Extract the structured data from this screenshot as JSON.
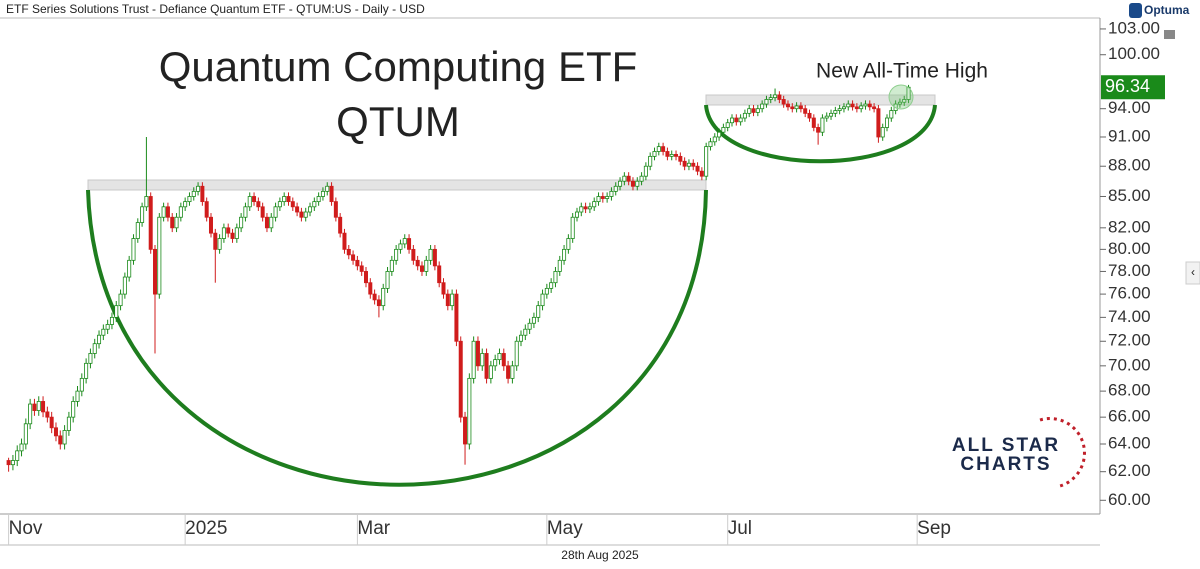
{
  "chart_data": {
    "type": "candlestick",
    "header": "ETF Series Solutions Trust - Defiance Quantum ETF - QTUM:US - Daily - USD",
    "source": "Optuma",
    "title": "Quantum Computing ETF",
    "subtitle": "QTUM",
    "annotation": "New All-Time High",
    "date_label": "28th Aug 2025",
    "logo": [
      "ALL STAR",
      "CHARTS"
    ],
    "log_scale": true,
    "up_color": "#1a8a1a",
    "down_color": "#d01c1c",
    "annotation_color": "#1e7d1e",
    "ylim": [
      59.2,
      104.3
    ],
    "yticks": [
      {
        "value": 103,
        "label": "103.00"
      },
      {
        "value": 100,
        "label": "100.00"
      },
      {
        "value": 94,
        "label": "94.00"
      },
      {
        "value": 91,
        "label": "91.00"
      },
      {
        "value": 88,
        "label": "88.00"
      },
      {
        "value": 85,
        "label": "85.00"
      },
      {
        "value": 82,
        "label": "82.00"
      },
      {
        "value": 80,
        "label": "80.00"
      },
      {
        "value": 78,
        "label": "78.00"
      },
      {
        "value": 76,
        "label": "76.00"
      },
      {
        "value": 74,
        "label": "74.00"
      },
      {
        "value": 72,
        "label": "72.00"
      },
      {
        "value": 70,
        "label": "70.00"
      },
      {
        "value": 68,
        "label": "68.00"
      },
      {
        "value": 66,
        "label": "66.00"
      },
      {
        "value": 64,
        "label": "64.00"
      },
      {
        "value": 62,
        "label": "62.00"
      },
      {
        "value": 60,
        "label": "60.00"
      }
    ],
    "xlim": [
      -2,
      253
    ],
    "xticks": [
      {
        "value": 0,
        "label": "Nov"
      },
      {
        "value": 41,
        "label": "2025"
      },
      {
        "value": 81,
        "label": "Mar"
      },
      {
        "value": 125,
        "label": "May"
      },
      {
        "value": 167,
        "label": "Jul"
      },
      {
        "value": 211,
        "label": "Sep"
      }
    ],
    "ohlc": [
      [
        62.8,
        63,
        62,
        62.5
      ],
      [
        62.5,
        63.2,
        62.1,
        62.8
      ],
      [
        62.8,
        63.9,
        62.4,
        63.5
      ],
      [
        63.5,
        64.4,
        63.1,
        64
      ],
      [
        64,
        65.9,
        63.6,
        65.5
      ],
      [
        65.5,
        67.4,
        65.1,
        67
      ],
      [
        67,
        67.4,
        66.1,
        66.5
      ],
      [
        66.5,
        67.6,
        66.1,
        67.2
      ],
      [
        67.2,
        67.6,
        66,
        66.4
      ],
      [
        66.4,
        66.8,
        65.6,
        66
      ],
      [
        66,
        66.4,
        64.8,
        65.2
      ],
      [
        65.2,
        65.6,
        64.2,
        64.6
      ],
      [
        64.6,
        65,
        63.6,
        64
      ],
      [
        64,
        65.4,
        63.6,
        65
      ],
      [
        65,
        66.4,
        64.6,
        66
      ],
      [
        66,
        67.6,
        65.6,
        67.2
      ],
      [
        67.2,
        68.4,
        66.8,
        68
      ],
      [
        68,
        69.4,
        67.6,
        69
      ],
      [
        69,
        70.6,
        68.6,
        70.2
      ],
      [
        70.2,
        71.4,
        69.8,
        71
      ],
      [
        71,
        72.2,
        70.6,
        71.8
      ],
      [
        71.8,
        72.9,
        71.4,
        72.5
      ],
      [
        72.5,
        73.4,
        72.1,
        73
      ],
      [
        73,
        73.8,
        72.6,
        73.4
      ],
      [
        73.4,
        74.4,
        73,
        74
      ],
      [
        74,
        75.4,
        73.6,
        75
      ],
      [
        75,
        76.4,
        74.6,
        76
      ],
      [
        76,
        77.9,
        75.6,
        77.5
      ],
      [
        77.5,
        79.4,
        77.1,
        79
      ],
      [
        79,
        81.4,
        78.6,
        81
      ],
      [
        81,
        82.9,
        80.6,
        82.5
      ],
      [
        82.5,
        84.4,
        82.1,
        84
      ],
      [
        84,
        91,
        83.6,
        85
      ],
      [
        85,
        85.4,
        79.6,
        80
      ],
      [
        80,
        80.4,
        71,
        76
      ],
      [
        76,
        83.4,
        75.6,
        83
      ],
      [
        83,
        84.4,
        82.6,
        84
      ],
      [
        84,
        84.4,
        82.6,
        83
      ],
      [
        83,
        83.4,
        81.6,
        82
      ],
      [
        82,
        83.4,
        81.6,
        83
      ],
      [
        83,
        84.4,
        82.6,
        84
      ],
      [
        84,
        84.9,
        83.6,
        84.5
      ],
      [
        84.5,
        85.4,
        84.1,
        85
      ],
      [
        85,
        85.9,
        84.6,
        85.5
      ],
      [
        85.5,
        86.4,
        85.1,
        86
      ],
      [
        86,
        86.4,
        84.1,
        84.5
      ],
      [
        84.5,
        84.9,
        82.6,
        83
      ],
      [
        83,
        83.4,
        81.1,
        81.5
      ],
      [
        81.5,
        81.9,
        77,
        80
      ],
      [
        80,
        81.4,
        79.6,
        81
      ],
      [
        81,
        82.4,
        80.6,
        82
      ],
      [
        82,
        82.4,
        81.1,
        81.5
      ],
      [
        81.5,
        81.9,
        80.6,
        81
      ],
      [
        81,
        82.4,
        80.6,
        82
      ],
      [
        82,
        83.4,
        81.6,
        83
      ],
      [
        83,
        84.4,
        82.6,
        84
      ],
      [
        84,
        85.4,
        83.6,
        85
      ],
      [
        85,
        85.4,
        84.1,
        84.5
      ],
      [
        84.5,
        84.9,
        83.6,
        84
      ],
      [
        84,
        84.4,
        82.6,
        83
      ],
      [
        83,
        83.4,
        81.6,
        82
      ],
      [
        82,
        83.4,
        81.6,
        83
      ],
      [
        83,
        84.4,
        82.6,
        84
      ],
      [
        84,
        84.9,
        83.6,
        84.5
      ],
      [
        84.5,
        85.4,
        84.1,
        85
      ],
      [
        85,
        85.4,
        84.1,
        84.5
      ],
      [
        84.5,
        84.9,
        83.6,
        84
      ],
      [
        84,
        84.4,
        83.1,
        83.5
      ],
      [
        83.5,
        83.9,
        82.6,
        83
      ],
      [
        83,
        83.9,
        82.6,
        83.5
      ],
      [
        83.5,
        84.4,
        83.1,
        84
      ],
      [
        84,
        84.9,
        83.6,
        84.5
      ],
      [
        84.5,
        85.4,
        84.1,
        85
      ],
      [
        85,
        85.9,
        84.6,
        85.5
      ],
      [
        85.5,
        86.4,
        85.1,
        86
      ],
      [
        86,
        86.4,
        84.1,
        84.5
      ],
      [
        84.5,
        84.9,
        82.6,
        83
      ],
      [
        83,
        83.4,
        81.1,
        81.5
      ],
      [
        81.5,
        81.9,
        79.6,
        80
      ],
      [
        80,
        80.4,
        79.1,
        79.5
      ],
      [
        79.5,
        79.9,
        78.6,
        79
      ],
      [
        79,
        79.4,
        78.1,
        78.5
      ],
      [
        78.5,
        78.9,
        77.6,
        78
      ],
      [
        78,
        78.4,
        76.6,
        77
      ],
      [
        77,
        77.4,
        75.6,
        76
      ],
      [
        76,
        76.4,
        75.1,
        75.5
      ],
      [
        75.5,
        75.9,
        74,
        75
      ],
      [
        75,
        76.9,
        74.6,
        76.5
      ],
      [
        76.5,
        78.4,
        76.1,
        78
      ],
      [
        78,
        79.4,
        77.6,
        79
      ],
      [
        79,
        80.4,
        78.6,
        80
      ],
      [
        80,
        80.9,
        79.6,
        80.5
      ],
      [
        80.5,
        81.4,
        80.1,
        81
      ],
      [
        81,
        81.4,
        79.6,
        80
      ],
      [
        80,
        80.4,
        78.6,
        79
      ],
      [
        79,
        79.4,
        78.1,
        78.5
      ],
      [
        78.5,
        78.9,
        77.6,
        78
      ],
      [
        78,
        79.4,
        77.6,
        79
      ],
      [
        79,
        80.4,
        78.6,
        80
      ],
      [
        80,
        80.4,
        78.1,
        78.5
      ],
      [
        78.5,
        78.9,
        76.6,
        77
      ],
      [
        77,
        77.4,
        75.6,
        76
      ],
      [
        76,
        76.4,
        74.6,
        75
      ],
      [
        75,
        76.4,
        74.6,
        76
      ],
      [
        76,
        76.4,
        71.6,
        72
      ],
      [
        72,
        72.4,
        65.6,
        66
      ],
      [
        66,
        66.4,
        62.5,
        64
      ],
      [
        64,
        69.4,
        63.6,
        69
      ],
      [
        69,
        72.4,
        68.6,
        72
      ],
      [
        72,
        72.4,
        69.6,
        70
      ],
      [
        70,
        71.4,
        69.6,
        71
      ],
      [
        71,
        71.4,
        68.6,
        69
      ],
      [
        69,
        70.4,
        68.6,
        70
      ],
      [
        70,
        70.9,
        69.6,
        70.5
      ],
      [
        70.5,
        71.4,
        70.1,
        71
      ],
      [
        71,
        71.4,
        69.6,
        70
      ],
      [
        70,
        70.4,
        68.6,
        69
      ],
      [
        69,
        70.4,
        68.6,
        70
      ],
      [
        70,
        72.4,
        69.6,
        72
      ],
      [
        72,
        72.9,
        71.6,
        72.5
      ],
      [
        72.5,
        73.4,
        72.1,
        73
      ],
      [
        73,
        73.9,
        72.6,
        73.5
      ],
      [
        73.5,
        74.4,
        73.1,
        74
      ],
      [
        74,
        75.4,
        73.6,
        75
      ],
      [
        75,
        76.4,
        74.6,
        76
      ],
      [
        76,
        76.9,
        75.6,
        76.5
      ],
      [
        76.5,
        77.4,
        76.1,
        77
      ],
      [
        77,
        78.4,
        76.6,
        78
      ],
      [
        78,
        79.4,
        77.6,
        79
      ],
      [
        79,
        80.4,
        78.6,
        80
      ],
      [
        80,
        81.4,
        79.6,
        81
      ],
      [
        81,
        83.4,
        80.6,
        83
      ],
      [
        83,
        83.9,
        82.6,
        83.5
      ],
      [
        83.5,
        84.4,
        83.1,
        84
      ],
      [
        84,
        84.4,
        83.4,
        83.8
      ],
      [
        83.8,
        84.4,
        83.4,
        84
      ],
      [
        84,
        84.9,
        83.6,
        84.5
      ],
      [
        84.5,
        85.4,
        84.1,
        85
      ],
      [
        85,
        85.4,
        84.4,
        84.8
      ],
      [
        84.8,
        85.4,
        84.4,
        85
      ],
      [
        85,
        85.9,
        84.6,
        85.5
      ],
      [
        85.5,
        86.4,
        85.1,
        86
      ],
      [
        86,
        86.9,
        85.6,
        86.5
      ],
      [
        86.5,
        87.4,
        86.1,
        87
      ],
      [
        87,
        87.4,
        86.1,
        86.5
      ],
      [
        86.5,
        86.9,
        85.6,
        86
      ],
      [
        86,
        86.9,
        85.6,
        86.5
      ],
      [
        86.5,
        87.4,
        86.1,
        87
      ],
      [
        87,
        88.4,
        86.6,
        88
      ],
      [
        88,
        89.4,
        87.6,
        89
      ],
      [
        89,
        89.9,
        88.6,
        89.5
      ],
      [
        89.5,
        90.4,
        89.1,
        90
      ],
      [
        90,
        90.4,
        89.1,
        89.5
      ],
      [
        89.5,
        89.9,
        88.6,
        89
      ],
      [
        89,
        89.6,
        88.6,
        89.2
      ],
      [
        89.2,
        89.6,
        88.6,
        89
      ],
      [
        89,
        89.4,
        88.1,
        88.5
      ],
      [
        88.5,
        88.9,
        87.6,
        88
      ],
      [
        88,
        88.7,
        87.6,
        88.3
      ],
      [
        88.3,
        88.7,
        87.6,
        88
      ],
      [
        88,
        88.4,
        87.1,
        87.5
      ],
      [
        87.5,
        87.9,
        86.6,
        87
      ],
      [
        87,
        90.4,
        86.6,
        90
      ],
      [
        90,
        90.9,
        89.6,
        90.5
      ],
      [
        90.5,
        91.4,
        90.1,
        91
      ],
      [
        91,
        91.9,
        90.6,
        91.5
      ],
      [
        91.5,
        92.4,
        91.1,
        92
      ],
      [
        92,
        92.9,
        91.6,
        92.5
      ],
      [
        92.5,
        93.4,
        92.1,
        93
      ],
      [
        93,
        93.4,
        92.2,
        92.6
      ],
      [
        92.6,
        93.4,
        92.2,
        93
      ],
      [
        93,
        93.9,
        92.6,
        93.5
      ],
      [
        93.5,
        94.4,
        93.1,
        94
      ],
      [
        94,
        94.4,
        93.2,
        93.6
      ],
      [
        93.6,
        94.4,
        93.2,
        94
      ],
      [
        94,
        94.9,
        93.6,
        94.5
      ],
      [
        94.5,
        95.4,
        94.1,
        95
      ],
      [
        95,
        95.6,
        94.6,
        95.2
      ],
      [
        95.2,
        96.2,
        94.8,
        95.5
      ],
      [
        95.5,
        95.9,
        94.6,
        95
      ],
      [
        95,
        95.4,
        94.1,
        94.5
      ],
      [
        94.5,
        94.9,
        93.8,
        94.2
      ],
      [
        94.2,
        94.6,
        93.6,
        94
      ],
      [
        94,
        94.7,
        93.6,
        94.3
      ],
      [
        94.3,
        94.7,
        93.6,
        94
      ],
      [
        94,
        94.4,
        93.1,
        93.5
      ],
      [
        93.5,
        93.9,
        92.6,
        93
      ],
      [
        93,
        93.4,
        91.6,
        92
      ],
      [
        92,
        92.4,
        90.2,
        91.5
      ],
      [
        91.5,
        93.4,
        91.1,
        93
      ],
      [
        93,
        93.6,
        92.6,
        93.2
      ],
      [
        93.2,
        93.9,
        92.8,
        93.5
      ],
      [
        93.5,
        94.2,
        93.1,
        93.8
      ],
      [
        93.8,
        94.4,
        93.4,
        94
      ],
      [
        94,
        94.6,
        93.6,
        94.2
      ],
      [
        94.2,
        94.9,
        93.8,
        94.5
      ],
      [
        94.5,
        94.9,
        93.8,
        94.2
      ],
      [
        94.2,
        94.6,
        93.6,
        94
      ],
      [
        94,
        94.7,
        93.6,
        94.3
      ],
      [
        94.3,
        94.9,
        93.9,
        94.5
      ],
      [
        94.5,
        94.9,
        93.8,
        94.2
      ],
      [
        94.2,
        94.6,
        93.6,
        94
      ],
      [
        94,
        94.4,
        90.4,
        91
      ],
      [
        91,
        92.4,
        90.6,
        92
      ],
      [
        92,
        93.4,
        91.6,
        93
      ],
      [
        93,
        94.2,
        92.6,
        93.8
      ],
      [
        93.8,
        94.9,
        93.4,
        94.5
      ],
      [
        94.5,
        95.1,
        94.1,
        94.7
      ],
      [
        94.7,
        95.4,
        94.3,
        95
      ],
      [
        95,
        96.6,
        94.6,
        96.34
      ]
    ]
  }
}
